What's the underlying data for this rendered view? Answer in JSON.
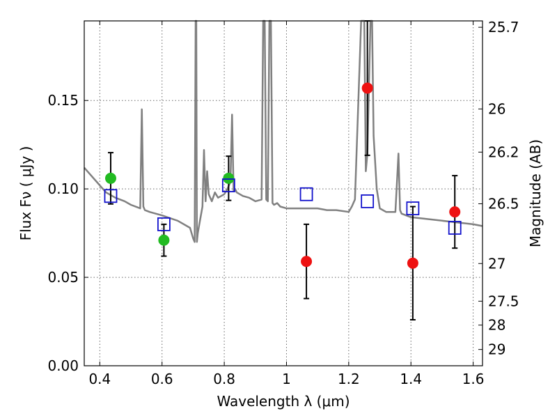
{
  "chart_data": {
    "type": "scatter",
    "xlabel": "Wavelength  λ (μm)",
    "ylabel": "Flux  Fν  ( μJy )",
    "ylabel_right": "Magnitude (AB)",
    "xlim": [
      0.35,
      1.63
    ],
    "ylim": [
      0.0,
      0.195
    ],
    "grid": true,
    "x_ticks": [
      {
        "value": 0.4,
        "label": "0.4"
      },
      {
        "value": 0.6,
        "label": "0.6"
      },
      {
        "value": 0.8,
        "label": "0.8"
      },
      {
        "value": 1.0,
        "label": "1"
      },
      {
        "value": 1.2,
        "label": "1.2"
      },
      {
        "value": 1.4,
        "label": "1.4"
      },
      {
        "value": 1.6,
        "label": "1.6"
      }
    ],
    "y_ticks": [
      {
        "value": 0.0,
        "label": "0.00"
      },
      {
        "value": 0.05,
        "label": "0.05"
      },
      {
        "value": 0.1,
        "label": "0.10"
      },
      {
        "value": 0.15,
        "label": "0.15"
      }
    ],
    "right_ticks": [
      {
        "label": "25.7",
        "flux": 0.1914
      },
      {
        "label": "26",
        "flux": 0.1452
      },
      {
        "label": "26.2",
        "flux": 0.1208
      },
      {
        "label": "26.5",
        "flux": 0.0916
      },
      {
        "label": "27",
        "flux": 0.0578
      },
      {
        "label": "27.5",
        "flux": 0.0365
      },
      {
        "label": "28",
        "flux": 0.023
      },
      {
        "label": "29",
        "flux": 0.0092
      }
    ],
    "colors": {
      "spectrum": "#808080",
      "detections": "#22bb22",
      "nondetections": "#ee1111",
      "model": "#1111cc",
      "errorbars": "#000000",
      "grid": "#666666"
    },
    "series": [
      {
        "marker": "circle",
        "color": "#22bb22",
        "points": [
          {
            "x": 0.435,
            "y": 0.106,
            "err": 0.0145
          },
          {
            "x": 0.606,
            "y": 0.071,
            "err": 0.009
          },
          {
            "x": 0.814,
            "y": 0.106,
            "err": 0.0125
          }
        ]
      },
      {
        "marker": "circle",
        "color": "#ee1111",
        "points": [
          {
            "x": 1.064,
            "y": 0.059,
            "err": 0.021
          },
          {
            "x": 1.26,
            "y": 0.157,
            "err": 0.038
          },
          {
            "x": 1.406,
            "y": 0.058,
            "err": 0.032
          },
          {
            "x": 1.541,
            "y": 0.087,
            "err": 0.0205
          }
        ]
      },
      {
        "marker": "square",
        "color": "#1111cc",
        "points": [
          {
            "x": 0.435,
            "y": 0.096
          },
          {
            "x": 0.606,
            "y": 0.08
          },
          {
            "x": 0.814,
            "y": 0.102
          },
          {
            "x": 1.064,
            "y": 0.097
          },
          {
            "x": 1.26,
            "y": 0.093
          },
          {
            "x": 1.406,
            "y": 0.089
          },
          {
            "x": 1.541,
            "y": 0.078
          }
        ]
      },
      {
        "type": "line",
        "color": "#808080",
        "x": [
          0.35,
          0.36,
          0.37,
          0.38,
          0.39,
          0.4,
          0.42,
          0.45,
          0.48,
          0.5,
          0.53,
          0.535,
          0.54,
          0.545,
          0.56,
          0.6,
          0.65,
          0.69,
          0.7,
          0.705,
          0.708,
          0.71,
          0.712,
          0.715,
          0.72,
          0.73,
          0.735,
          0.74,
          0.745,
          0.75,
          0.76,
          0.77,
          0.78,
          0.8,
          0.81,
          0.82,
          0.825,
          0.83,
          0.835,
          0.84,
          0.86,
          0.88,
          0.9,
          0.92,
          0.925,
          0.93,
          0.935,
          0.94,
          0.945,
          0.95,
          0.955,
          0.96,
          0.97,
          0.98,
          1.0,
          1.03,
          1.06,
          1.1,
          1.13,
          1.16,
          1.2,
          1.21,
          1.22,
          1.24,
          1.25,
          1.255,
          1.26,
          1.27,
          1.275,
          1.28,
          1.29,
          1.3,
          1.32,
          1.35,
          1.36,
          1.365,
          1.37,
          1.4,
          1.45,
          1.5,
          1.55,
          1.6,
          1.63
        ],
        "y": [
          0.112,
          0.11,
          0.108,
          0.106,
          0.104,
          0.102,
          0.098,
          0.095,
          0.093,
          0.091,
          0.089,
          0.145,
          0.09,
          0.088,
          0.087,
          0.085,
          0.082,
          0.078,
          0.072,
          0.07,
          0.24,
          0.24,
          0.07,
          0.075,
          0.08,
          0.09,
          0.122,
          0.093,
          0.11,
          0.097,
          0.093,
          0.098,
          0.095,
          0.097,
          0.1,
          0.104,
          0.142,
          0.099,
          0.1,
          0.098,
          0.096,
          0.095,
          0.093,
          0.094,
          0.24,
          0.24,
          0.094,
          0.093,
          0.24,
          0.24,
          0.092,
          0.091,
          0.092,
          0.09,
          0.089,
          0.089,
          0.089,
          0.089,
          0.088,
          0.088,
          0.087,
          0.09,
          0.094,
          0.24,
          0.24,
          0.11,
          0.12,
          0.24,
          0.24,
          0.13,
          0.1,
          0.089,
          0.087,
          0.087,
          0.12,
          0.088,
          0.086,
          0.084,
          0.083,
          0.082,
          0.081,
          0.08,
          0.079
        ]
      }
    ]
  }
}
